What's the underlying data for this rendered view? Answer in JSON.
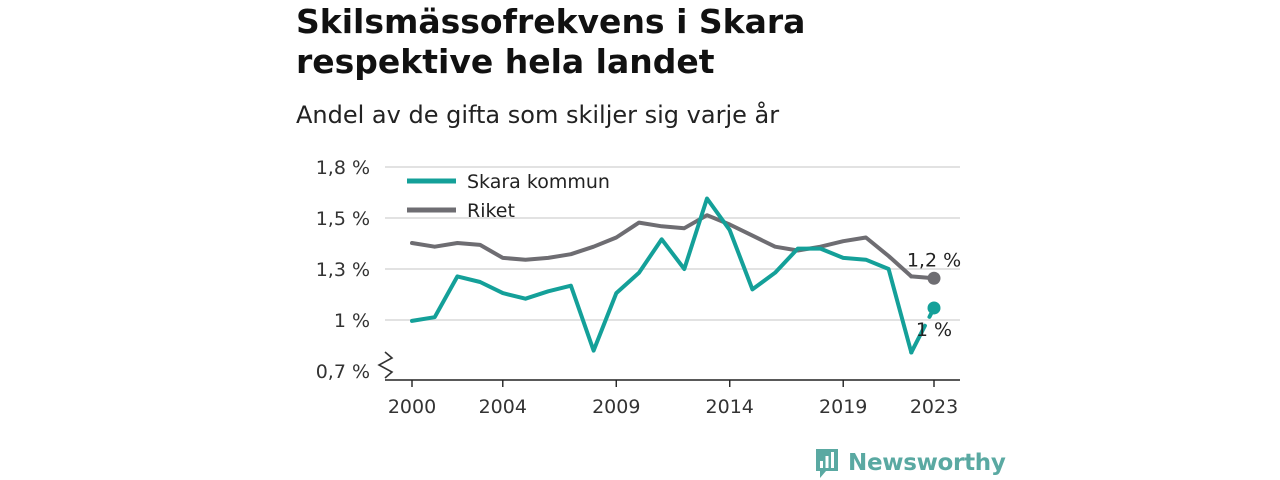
{
  "header": {
    "title": "Skilsmässofrekvens i Skara respektive hela landet",
    "subtitle": "Andel av de gifta som skiljer sig varje år"
  },
  "brand": {
    "name": "Newsworthy",
    "color": "#5aa9a2",
    "icon": "newsworthy-logo-icon"
  },
  "chart_data": {
    "type": "line",
    "x": [
      2000,
      2001,
      2002,
      2003,
      2004,
      2005,
      2006,
      2007,
      2008,
      2009,
      2010,
      2011,
      2012,
      2013,
      2014,
      2015,
      2016,
      2017,
      2018,
      2019,
      2020,
      2021,
      2022,
      2023
    ],
    "series": [
      {
        "name": "Skara kommun",
        "color": "#14a099",
        "values": [
          0.97,
          0.99,
          1.21,
          1.18,
          1.12,
          1.09,
          1.13,
          1.16,
          0.81,
          1.12,
          1.23,
          1.41,
          1.25,
          1.63,
          1.46,
          1.14,
          1.23,
          1.36,
          1.36,
          1.31,
          1.3,
          1.25,
          0.8,
          1.04
        ],
        "end_label": "1 %"
      },
      {
        "name": "Riket",
        "color": "#6e6d72",
        "values": [
          1.39,
          1.37,
          1.39,
          1.38,
          1.31,
          1.3,
          1.31,
          1.33,
          1.37,
          1.42,
          1.5,
          1.48,
          1.47,
          1.54,
          1.49,
          1.43,
          1.37,
          1.35,
          1.37,
          1.4,
          1.42,
          1.32,
          1.21,
          1.2
        ],
        "end_label": "1,2 %"
      }
    ],
    "y_ticks": [
      {
        "value": 0.7,
        "label": "0,7 %"
      },
      {
        "value": 1.0,
        "label": "1 %"
      },
      {
        "value": 1.3,
        "label": "1,3 %"
      },
      {
        "value": 1.5,
        "label": "1,5 %"
      },
      {
        "value": 1.8,
        "label": "1,8 %"
      }
    ],
    "x_ticks": [
      2000,
      2004,
      2009,
      2014,
      2019,
      2023
    ],
    "ylim": [
      0.7,
      1.8
    ],
    "xlim": [
      2000,
      2023
    ],
    "grid": true,
    "y_axis_break": true,
    "legend_position": "top-left"
  }
}
